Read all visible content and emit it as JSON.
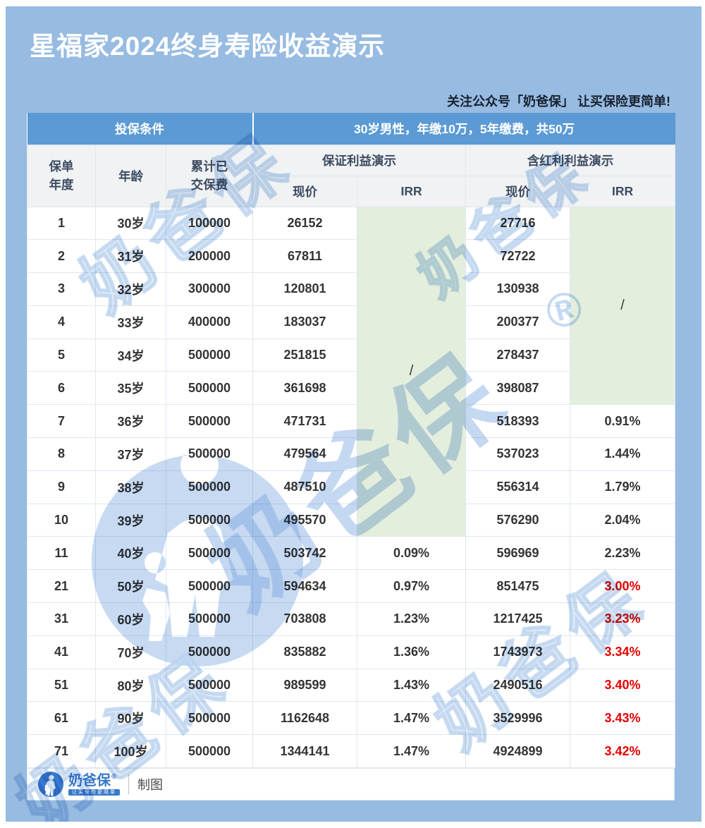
{
  "page": {
    "title": "星福家2024终身寿险收益演示",
    "subtitle": "关注公众号「奶爸保」 让买保险更简单!"
  },
  "chart_data": {
    "type": "table",
    "title": "星福家2024终身寿险收益演示",
    "top_header": {
      "left": "投保条件",
      "right": "30岁男性，年缴10万，5年缴费，共50万"
    },
    "columns": {
      "policy_year": "保单\n年度",
      "age": "年龄",
      "premium": "累计已\n交保费",
      "guaranteed_group": "保证利益演示",
      "dividend_group": "含红利利益演示",
      "cash_value": "现价",
      "irr": "IRR"
    },
    "merge": {
      "slash": "/",
      "guaranteed_irr_rows": 10,
      "dividend_irr_rows": 6
    },
    "rows": [
      {
        "year": "1",
        "age": "30岁",
        "premium": "100000",
        "g_cash": "26152",
        "g_irr": "",
        "d_cash": "27716",
        "d_irr": "",
        "red": false
      },
      {
        "year": "2",
        "age": "31岁",
        "premium": "200000",
        "g_cash": "67811",
        "g_irr": "",
        "d_cash": "72722",
        "d_irr": "",
        "red": false
      },
      {
        "year": "3",
        "age": "32岁",
        "premium": "300000",
        "g_cash": "120801",
        "g_irr": "",
        "d_cash": "130938",
        "d_irr": "",
        "red": false
      },
      {
        "year": "4",
        "age": "33岁",
        "premium": "400000",
        "g_cash": "183037",
        "g_irr": "",
        "d_cash": "200377",
        "d_irr": "",
        "red": false
      },
      {
        "year": "5",
        "age": "34岁",
        "premium": "500000",
        "g_cash": "251815",
        "g_irr": "",
        "d_cash": "278437",
        "d_irr": "",
        "red": false
      },
      {
        "year": "6",
        "age": "35岁",
        "premium": "500000",
        "g_cash": "361698",
        "g_irr": "",
        "d_cash": "398087",
        "d_irr": "",
        "red": false
      },
      {
        "year": "7",
        "age": "36岁",
        "premium": "500000",
        "g_cash": "471731",
        "g_irr": "",
        "d_cash": "518393",
        "d_irr": "0.91%",
        "red": false
      },
      {
        "year": "8",
        "age": "37岁",
        "premium": "500000",
        "g_cash": "479564",
        "g_irr": "",
        "d_cash": "537023",
        "d_irr": "1.44%",
        "red": false
      },
      {
        "year": "9",
        "age": "38岁",
        "premium": "500000",
        "g_cash": "487510",
        "g_irr": "",
        "d_cash": "556314",
        "d_irr": "1.79%",
        "red": false
      },
      {
        "year": "10",
        "age": "39岁",
        "premium": "500000",
        "g_cash": "495570",
        "g_irr": "",
        "d_cash": "576290",
        "d_irr": "2.04%",
        "red": false
      },
      {
        "year": "11",
        "age": "40岁",
        "premium": "500000",
        "g_cash": "503742",
        "g_irr": "0.09%",
        "d_cash": "596969",
        "d_irr": "2.23%",
        "red": false
      },
      {
        "year": "21",
        "age": "50岁",
        "premium": "500000",
        "g_cash": "594634",
        "g_irr": "0.97%",
        "d_cash": "851475",
        "d_irr": "3.00%",
        "red": true
      },
      {
        "year": "31",
        "age": "60岁",
        "premium": "500000",
        "g_cash": "703808",
        "g_irr": "1.23%",
        "d_cash": "1217425",
        "d_irr": "3.23%",
        "red": true
      },
      {
        "year": "41",
        "age": "70岁",
        "premium": "500000",
        "g_cash": "835882",
        "g_irr": "1.36%",
        "d_cash": "1743973",
        "d_irr": "3.34%",
        "red": true
      },
      {
        "year": "51",
        "age": "80岁",
        "premium": "500000",
        "g_cash": "989599",
        "g_irr": "1.43%",
        "d_cash": "2490516",
        "d_irr": "3.40%",
        "red": true
      },
      {
        "year": "61",
        "age": "90岁",
        "premium": "500000",
        "g_cash": "1162648",
        "g_irr": "1.47%",
        "d_cash": "3529996",
        "d_irr": "3.43%",
        "red": true
      },
      {
        "year": "71",
        "age": "100岁",
        "premium": "500000",
        "g_cash": "1344141",
        "g_irr": "1.47%",
        "d_cash": "4924899",
        "d_irr": "3.42%",
        "red": true
      }
    ]
  },
  "watermark": {
    "brand": "奶爸保",
    "registered": "®"
  },
  "footer": {
    "brand": "奶爸保",
    "registered": "®",
    "tagline": "让买保险更简单",
    "caption": "制图"
  },
  "colors": {
    "panel_blue": "#97BBE1",
    "header_blue": "#5B9AD4",
    "subheader_bg": "#F0F2F4",
    "subheader_text": "#3D4C61",
    "body_text": "#333333",
    "irr_red": "#E60000",
    "green_cell": "#E3EEDD",
    "cell_border": "#DEE8F1",
    "brand_blue": "#3879CB"
  }
}
